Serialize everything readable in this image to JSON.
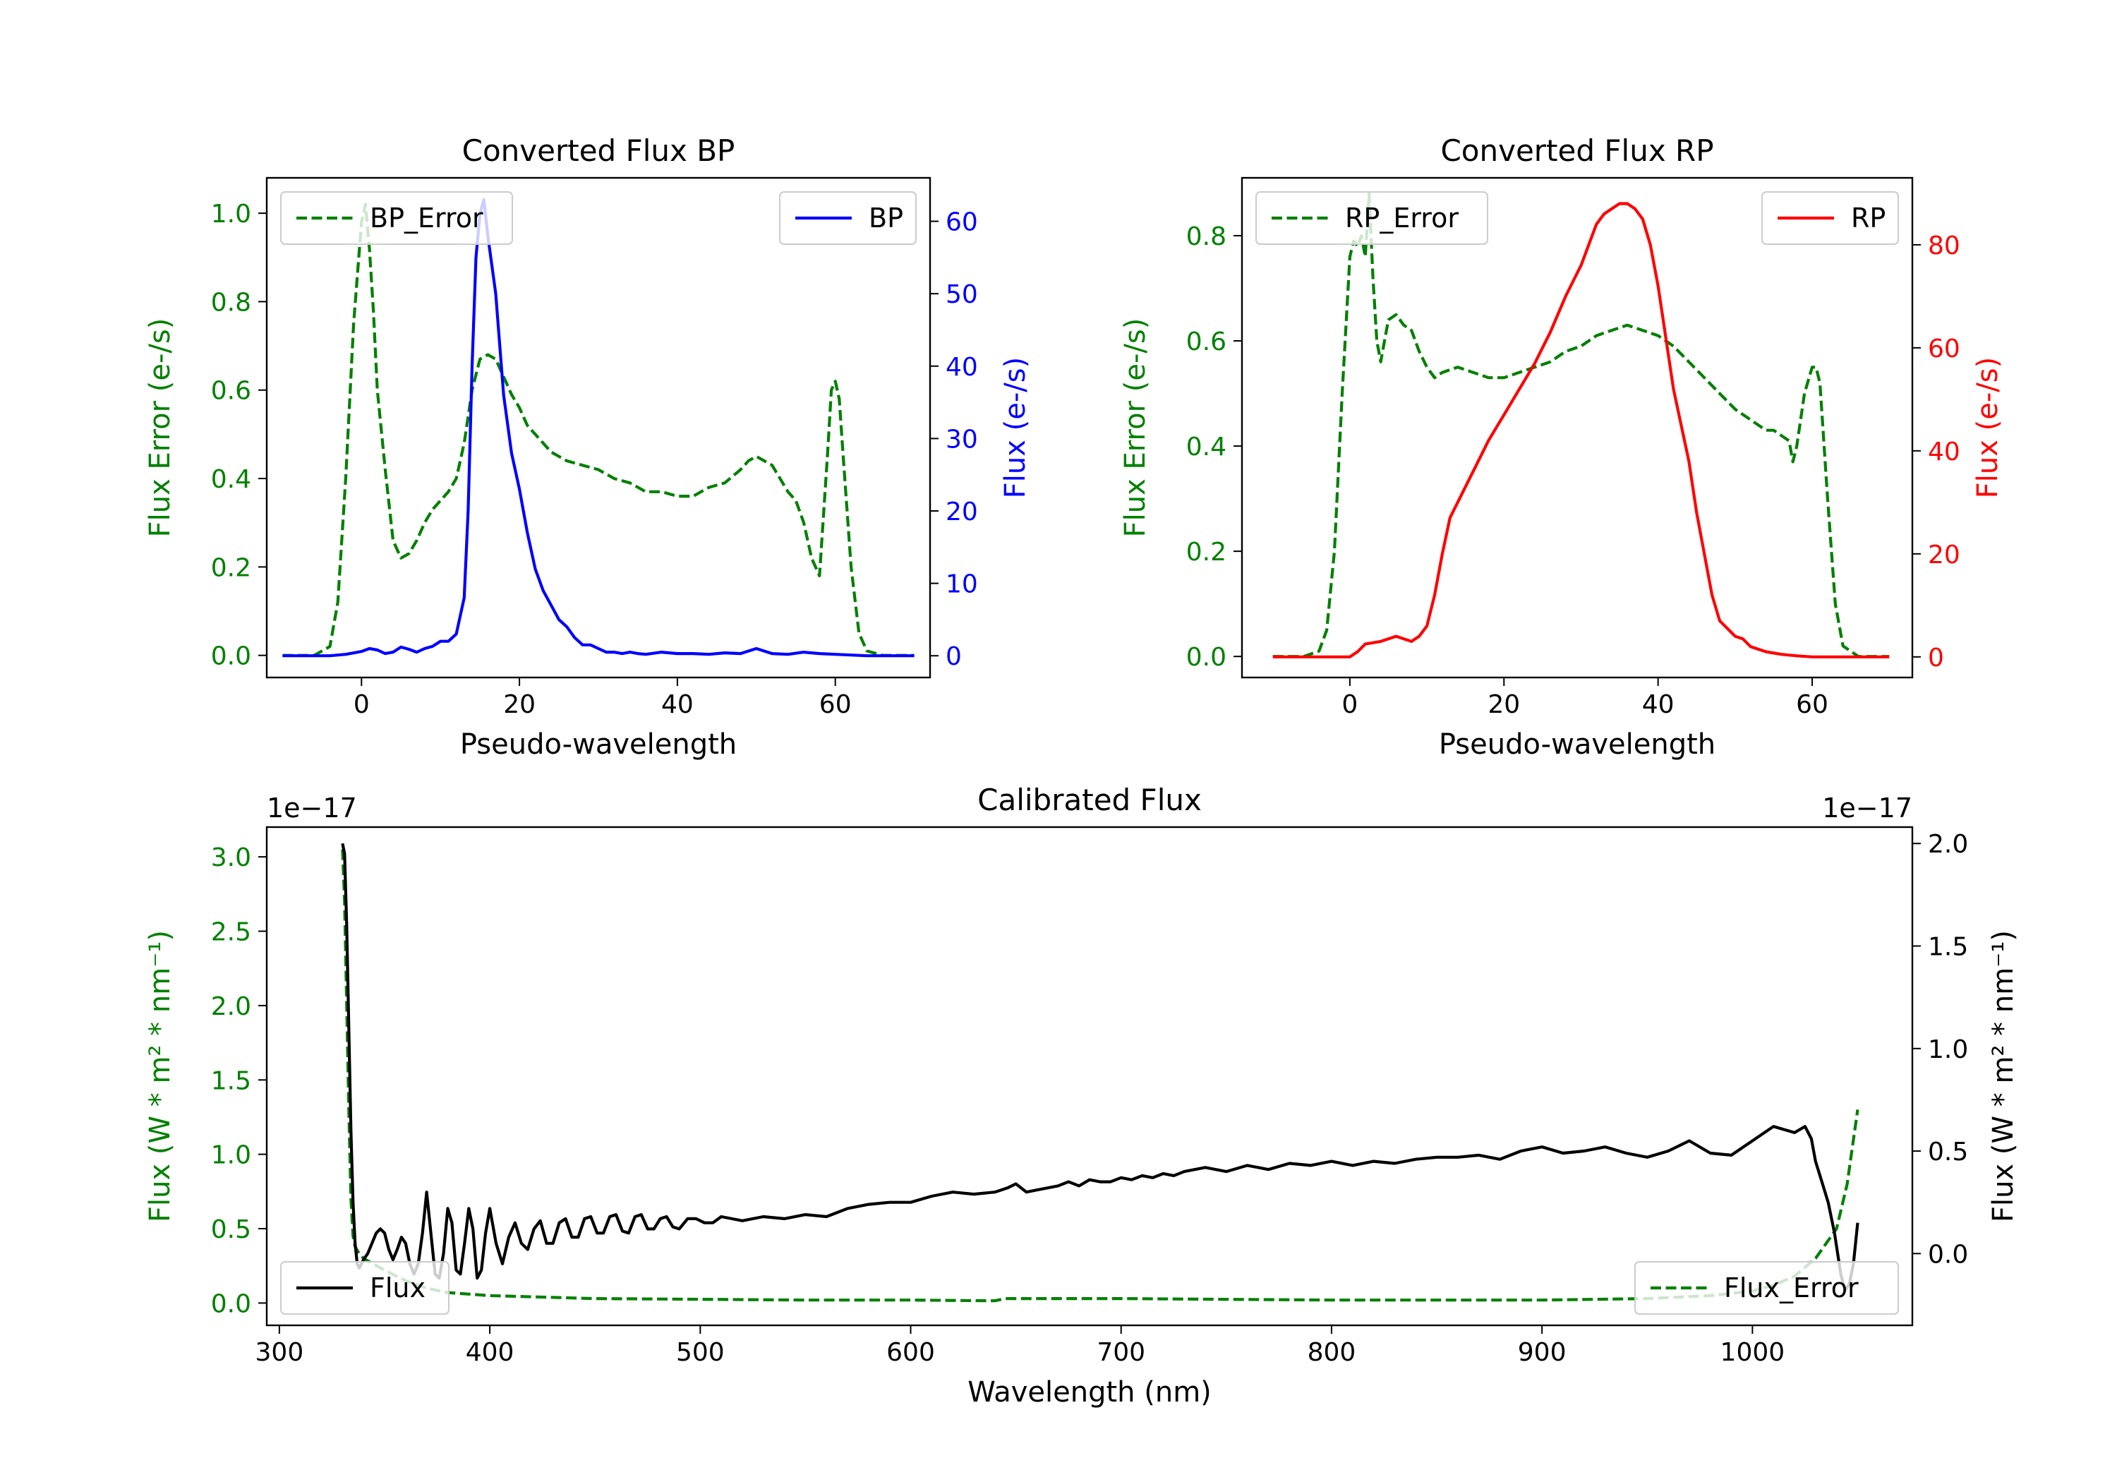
{
  "colors": {
    "green": "#008000",
    "blue": "#0000ff",
    "red": "#ff0000",
    "black": "#000000"
  },
  "chart_data": [
    {
      "id": "bp",
      "type": "line",
      "title": "Converted Flux BP",
      "xlabel": "Pseudo-wavelength",
      "xlim": [
        -12,
        72
      ],
      "xticks": [
        0,
        20,
        40,
        60
      ],
      "ylabel_left": "Flux Error (e-/s)",
      "ylim_left": [
        -0.05,
        1.08
      ],
      "yticks_left": [
        0.0,
        0.2,
        0.4,
        0.6,
        0.8,
        1.0
      ],
      "ylabel_right": "Flux (e-/s)",
      "ylim_right": [
        -3,
        66
      ],
      "yticks_right": [
        0,
        10,
        20,
        30,
        40,
        50,
        60
      ],
      "legend_left": "BP_Error",
      "legend_right": "BP",
      "series": [
        {
          "name": "BP_Error",
          "axis": "left",
          "color": "#008000",
          "dash": true,
          "x": [
            -10,
            -6,
            -4,
            -3,
            -2,
            -1,
            0,
            0.5,
            1,
            1.5,
            2,
            3,
            4,
            5,
            6,
            7,
            8,
            9,
            10,
            11,
            12,
            13,
            14,
            15,
            16,
            17,
            18,
            19,
            20,
            21,
            22,
            23,
            24,
            25,
            26,
            28,
            30,
            32,
            34,
            36,
            38,
            40,
            42,
            44,
            46,
            48,
            49,
            50,
            51,
            52,
            53,
            54,
            55,
            56,
            57,
            58,
            59,
            59.5,
            60,
            60.5,
            61,
            62,
            63,
            64,
            66,
            70
          ],
          "y": [
            0,
            0,
            0.02,
            0.12,
            0.4,
            0.75,
            0.98,
            1.02,
            0.92,
            0.78,
            0.6,
            0.42,
            0.26,
            0.22,
            0.23,
            0.26,
            0.3,
            0.33,
            0.35,
            0.37,
            0.4,
            0.48,
            0.6,
            0.67,
            0.68,
            0.67,
            0.63,
            0.59,
            0.56,
            0.52,
            0.5,
            0.48,
            0.46,
            0.45,
            0.44,
            0.43,
            0.42,
            0.4,
            0.39,
            0.37,
            0.37,
            0.36,
            0.36,
            0.38,
            0.39,
            0.42,
            0.44,
            0.45,
            0.44,
            0.43,
            0.4,
            0.37,
            0.35,
            0.3,
            0.22,
            0.18,
            0.45,
            0.6,
            0.62,
            0.58,
            0.45,
            0.2,
            0.05,
            0.01,
            0,
            0
          ]
        },
        {
          "name": "BP",
          "axis": "right",
          "color": "#0000ff",
          "dash": false,
          "x": [
            -10,
            -8,
            -6,
            -4,
            -2,
            0,
            1,
            2,
            3,
            4,
            5,
            6,
            7,
            8,
            9,
            10,
            11,
            12,
            13,
            13.5,
            14,
            14.5,
            15,
            15.5,
            16,
            17,
            18,
            19,
            20,
            21,
            22,
            23,
            24,
            25,
            26,
            27,
            28,
            29,
            30,
            31,
            32,
            33,
            34,
            35,
            36,
            38,
            40,
            42,
            44,
            46,
            48,
            50,
            52,
            54,
            56,
            58,
            60,
            62,
            64,
            66,
            68,
            70
          ],
          "y": [
            0,
            0,
            0,
            0,
            0.2,
            0.6,
            1,
            0.8,
            0.3,
            0.5,
            1.2,
            0.9,
            0.5,
            1,
            1.3,
            2,
            2,
            3,
            8,
            20,
            40,
            55,
            61,
            63,
            58,
            50,
            36,
            28,
            23,
            17,
            12,
            9,
            7,
            5,
            4,
            2.5,
            1.5,
            1.5,
            1,
            0.5,
            0.5,
            0.3,
            0.5,
            0.3,
            0.2,
            0.5,
            0.3,
            0.3,
            0.2,
            0.4,
            0.3,
            1,
            0.3,
            0.2,
            0.5,
            0.3,
            0.2,
            0.1,
            0,
            0,
            0,
            0
          ]
        }
      ]
    },
    {
      "id": "rp",
      "type": "line",
      "title": "Converted Flux RP",
      "xlabel": "Pseudo-wavelength",
      "xlim": [
        -14,
        73
      ],
      "xticks": [
        0,
        20,
        40,
        60
      ],
      "ylabel_left": "Flux Error (e-/s)",
      "ylim_left": [
        -0.04,
        0.91
      ],
      "yticks_left": [
        0.0,
        0.2,
        0.4,
        0.6,
        0.8
      ],
      "ylabel_right": "Flux (e-/s)",
      "ylim_right": [
        -4,
        93
      ],
      "yticks_right": [
        0,
        20,
        40,
        60,
        80
      ],
      "legend_left": "RP_Error",
      "legend_right": "RP",
      "series": [
        {
          "name": "RP_Error",
          "axis": "left",
          "color": "#008000",
          "dash": true,
          "x": [
            -10,
            -6,
            -4,
            -3,
            -2,
            -1,
            0,
            0.5,
            1,
            1.5,
            2,
            2.5,
            3,
            3.5,
            4,
            4.5,
            5,
            6,
            7,
            8,
            9,
            10,
            11,
            12,
            14,
            16,
            18,
            20,
            22,
            24,
            26,
            28,
            30,
            32,
            34,
            36,
            38,
            40,
            42,
            44,
            46,
            48,
            50,
            52,
            54,
            55,
            56,
            57,
            57.5,
            58,
            59,
            60,
            60.5,
            61,
            62,
            63,
            64,
            66,
            70
          ],
          "y": [
            0,
            0,
            0.01,
            0.05,
            0.2,
            0.5,
            0.76,
            0.79,
            0.78,
            0.8,
            0.76,
            0.88,
            0.72,
            0.6,
            0.56,
            0.6,
            0.64,
            0.65,
            0.63,
            0.62,
            0.58,
            0.55,
            0.53,
            0.54,
            0.55,
            0.54,
            0.53,
            0.53,
            0.54,
            0.55,
            0.56,
            0.58,
            0.59,
            0.61,
            0.62,
            0.63,
            0.62,
            0.61,
            0.59,
            0.56,
            0.53,
            0.5,
            0.47,
            0.45,
            0.43,
            0.43,
            0.42,
            0.41,
            0.37,
            0.4,
            0.5,
            0.55,
            0.55,
            0.52,
            0.3,
            0.1,
            0.02,
            0,
            0
          ]
        },
        {
          "name": "RP",
          "axis": "right",
          "color": "#ff0000",
          "dash": false,
          "x": [
            -10,
            -4,
            -2,
            0,
            1,
            2,
            4,
            6,
            8,
            9,
            10,
            11,
            12,
            13,
            14,
            16,
            18,
            20,
            22,
            24,
            26,
            28,
            29,
            30,
            31,
            32,
            33,
            34,
            35,
            36,
            37,
            38,
            39,
            40,
            41,
            42,
            43,
            44,
            45,
            46,
            47,
            48,
            50,
            51,
            52,
            53,
            54,
            56,
            58,
            60,
            64,
            70
          ],
          "y": [
            0,
            0,
            0,
            0,
            1,
            2.5,
            3,
            4,
            3,
            4,
            6,
            12,
            20,
            27,
            30,
            36,
            42,
            47,
            52,
            57,
            63,
            70,
            73,
            76,
            80,
            84,
            86,
            87,
            88,
            88,
            87,
            85,
            80,
            72,
            62,
            52,
            45,
            38,
            28,
            20,
            12,
            7,
            4,
            3.5,
            2,
            1.5,
            1,
            0.5,
            0.2,
            0,
            0,
            0
          ]
        }
      ]
    },
    {
      "id": "cal",
      "type": "line",
      "title": "Calibrated Flux",
      "xlabel": "Wavelength (nm)",
      "xlim": [
        294,
        1076
      ],
      "xticks": [
        300,
        400,
        500,
        600,
        700,
        800,
        900,
        1000
      ],
      "ylabel_left": "Flux (W * m² * nm⁻¹)",
      "ylim_left": [
        -0.15,
        3.2
      ],
      "yticks_left": [
        0.0,
        0.5,
        1.0,
        1.5,
        2.0,
        2.5,
        3.0
      ],
      "ylabel_right": "Flux (W * m² * nm⁻¹)",
      "ylim_right": [
        -0.35,
        2.08
      ],
      "yticks_right": [
        0.0,
        0.5,
        1.0,
        1.5,
        2.0
      ],
      "offset_left": "1e−17",
      "offset_right": "1e−17",
      "legend_left": "Flux",
      "legend_right": "Flux_Error",
      "series": [
        {
          "name": "Flux_Error",
          "axis": "left",
          "color": "#008000",
          "dash": true,
          "x": [
            330,
            331,
            332,
            333,
            334,
            335,
            336,
            338,
            340,
            345,
            350,
            360,
            370,
            380,
            400,
            450,
            500,
            550,
            600,
            640,
            645,
            700,
            800,
            900,
            950,
            980,
            1000,
            1010,
            1020,
            1030,
            1040,
            1045,
            1050
          ],
          "y": [
            3.05,
            2.7,
            2.0,
            1.3,
            0.7,
            0.45,
            0.38,
            0.33,
            0.3,
            0.26,
            0.22,
            0.15,
            0.1,
            0.07,
            0.05,
            0.03,
            0.025,
            0.02,
            0.02,
            0.015,
            0.03,
            0.03,
            0.02,
            0.02,
            0.03,
            0.05,
            0.08,
            0.12,
            0.18,
            0.3,
            0.5,
            0.8,
            1.3
          ]
        },
        {
          "name": "Flux",
          "axis": "right",
          "color": "#000000",
          "dash": false,
          "x": [
            330,
            331,
            332,
            333,
            334,
            335,
            336,
            337,
            338,
            339,
            340,
            342,
            344,
            346,
            348,
            350,
            352,
            354,
            356,
            358,
            360,
            362,
            364,
            366,
            368,
            370,
            372,
            374,
            376,
            378,
            380,
            382,
            384,
            386,
            388,
            390,
            392,
            394,
            396,
            398,
            400,
            403,
            406,
            409,
            412,
            415,
            418,
            421,
            424,
            427,
            430,
            433,
            436,
            439,
            442,
            445,
            448,
            451,
            454,
            457,
            460,
            463,
            466,
            469,
            472,
            475,
            478,
            481,
            484,
            487,
            490,
            494,
            498,
            502,
            506,
            510,
            520,
            530,
            540,
            550,
            560,
            570,
            580,
            590,
            600,
            610,
            620,
            630,
            640,
            643,
            646,
            650,
            655,
            660,
            665,
            670,
            675,
            680,
            685,
            690,
            695,
            700,
            705,
            710,
            715,
            720,
            725,
            730,
            740,
            750,
            760,
            770,
            780,
            790,
            800,
            810,
            820,
            830,
            840,
            850,
            860,
            870,
            880,
            890,
            900,
            910,
            920,
            930,
            940,
            950,
            960,
            970,
            980,
            990,
            1000,
            1010,
            1020,
            1025,
            1028,
            1030,
            1033,
            1036,
            1039,
            1042,
            1044,
            1046,
            1048,
            1050
          ],
          "y": [
            2.0,
            1.95,
            1.6,
            1.1,
            0.6,
            0.25,
            0.05,
            -0.05,
            -0.07,
            -0.05,
            -0.03,
            0.0,
            0.05,
            0.1,
            0.12,
            0.1,
            0.02,
            -0.03,
            0.02,
            0.08,
            0.05,
            -0.05,
            -0.1,
            -0.05,
            0.1,
            0.3,
            0.1,
            -0.1,
            -0.12,
            0.0,
            0.22,
            0.15,
            -0.08,
            -0.1,
            0.05,
            0.22,
            0.12,
            -0.12,
            -0.08,
            0.1,
            0.22,
            0.05,
            -0.05,
            0.08,
            0.15,
            0.05,
            0.02,
            0.12,
            0.16,
            0.05,
            0.05,
            0.15,
            0.17,
            0.08,
            0.08,
            0.17,
            0.18,
            0.1,
            0.1,
            0.18,
            0.19,
            0.11,
            0.1,
            0.18,
            0.19,
            0.12,
            0.12,
            0.17,
            0.18,
            0.13,
            0.12,
            0.17,
            0.17,
            0.15,
            0.15,
            0.18,
            0.16,
            0.18,
            0.17,
            0.19,
            0.18,
            0.22,
            0.24,
            0.25,
            0.25,
            0.28,
            0.3,
            0.29,
            0.3,
            0.31,
            0.32,
            0.34,
            0.3,
            0.31,
            0.32,
            0.33,
            0.35,
            0.33,
            0.36,
            0.35,
            0.35,
            0.37,
            0.36,
            0.38,
            0.37,
            0.39,
            0.38,
            0.4,
            0.42,
            0.4,
            0.43,
            0.41,
            0.44,
            0.43,
            0.45,
            0.43,
            0.45,
            0.44,
            0.46,
            0.47,
            0.47,
            0.48,
            0.46,
            0.5,
            0.52,
            0.49,
            0.5,
            0.52,
            0.49,
            0.47,
            0.5,
            0.55,
            0.49,
            0.48,
            0.55,
            0.62,
            0.59,
            0.62,
            0.56,
            0.45,
            0.35,
            0.25,
            0.1,
            -0.1,
            -0.18,
            -0.15,
            -0.05,
            0.15
          ]
        }
      ]
    }
  ]
}
